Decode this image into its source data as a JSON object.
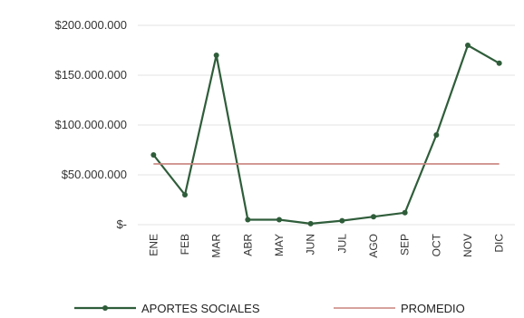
{
  "chart_data": {
    "type": "line",
    "categories": [
      "ENE",
      "FEB",
      "MAR",
      "ABR",
      "MAY",
      "JUN",
      "JUL",
      "AGO",
      "SEP",
      "OCT",
      "NOV",
      "DIC"
    ],
    "series": [
      {
        "name": "APORTES SOCIALES",
        "values": [
          70000000,
          30000000,
          170000000,
          5000000,
          5000000,
          1000000,
          4000000,
          8000000,
          12000000,
          90000000,
          180000000,
          162000000
        ],
        "color": "#2f5d3a"
      },
      {
        "name": "PROMEDIO",
        "values": [
          61000000,
          61000000,
          61000000,
          61000000,
          61000000,
          61000000,
          61000000,
          61000000,
          61000000,
          61000000,
          61000000,
          61000000
        ],
        "color": "#c8837d"
      }
    ],
    "y_ticks": [
      0,
      50000000,
      100000000,
      150000000,
      200000000
    ],
    "y_tick_labels": [
      "$-",
      "$50.000.000",
      "$100.000.000",
      "$150.000.000",
      "$200.000.000"
    ],
    "ylim": [
      0,
      200000000
    ],
    "grid": true,
    "legend_position": "bottom",
    "title": "",
    "xlabel": "",
    "ylabel": ""
  }
}
